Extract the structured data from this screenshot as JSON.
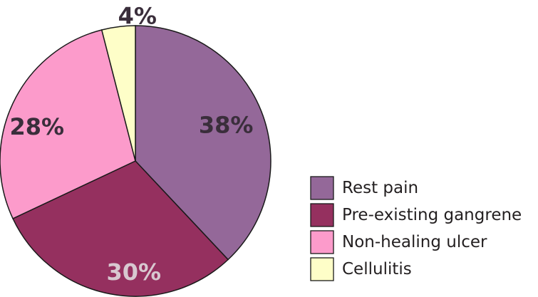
{
  "chart_data": {
    "type": "pie",
    "title": "",
    "categories": [
      "Rest pain",
      "Pre-existing gangrene",
      "Non-healing ulcer",
      "Cellulitis"
    ],
    "values": [
      38,
      30,
      28,
      4
    ],
    "labels": [
      "38%",
      "30%",
      "28%",
      "4%"
    ],
    "colors": [
      "#946899",
      "#95305f",
      "#fc9bcb",
      "#fefec8"
    ],
    "label_colors": [
      "#3a2e3b",
      "#d8c8d0",
      "#3a2e3b",
      "#3a2e3b"
    ],
    "start_angle_deg": 0,
    "direction": "clockwise",
    "legend": {
      "placement": "bottom-right",
      "entries": [
        "Rest pain",
        "Pre-existing gangrene",
        "Non-healing ulcer",
        "Cellulitis"
      ]
    }
  }
}
